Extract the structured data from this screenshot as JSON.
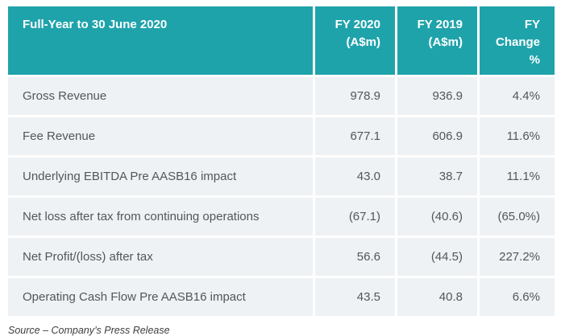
{
  "colors": {
    "header_bg": "#1fa3ab",
    "header_text": "#ffffff",
    "row_bg": "#eef2f4",
    "body_text": "#54565a"
  },
  "table": {
    "headers": [
      {
        "label": "Full-Year to 30 June 2020"
      },
      {
        "label": "FY 2020\n(A$m)"
      },
      {
        "label": "FY 2019\n(A$m)"
      },
      {
        "label": "FY\nChange\n%"
      }
    ],
    "rows": [
      {
        "label": "Gross Revenue",
        "fy2020": "978.9",
        "fy2019": "936.9",
        "change": "4.4%"
      },
      {
        "label": "Fee Revenue",
        "fy2020": "677.1",
        "fy2019": "606.9",
        "change": "11.6%"
      },
      {
        "label": "Underlying EBITDA Pre AASB16 impact",
        "fy2020": "43.0",
        "fy2019": "38.7",
        "change": "11.1%"
      },
      {
        "label": "Net loss after tax from continuing operations",
        "fy2020": "(67.1)",
        "fy2019": "(40.6)",
        "change": "(65.0%)"
      },
      {
        "label": "Net Profit/(loss) after tax",
        "fy2020": "56.6",
        "fy2019": "(44.5)",
        "change": "227.2%"
      },
      {
        "label": "Operating Cash Flow Pre AASB16 impact",
        "fy2020": "43.5",
        "fy2019": "40.8",
        "change": "6.6%"
      }
    ]
  },
  "footer": {
    "source": "Source – Company’s Press Release"
  }
}
